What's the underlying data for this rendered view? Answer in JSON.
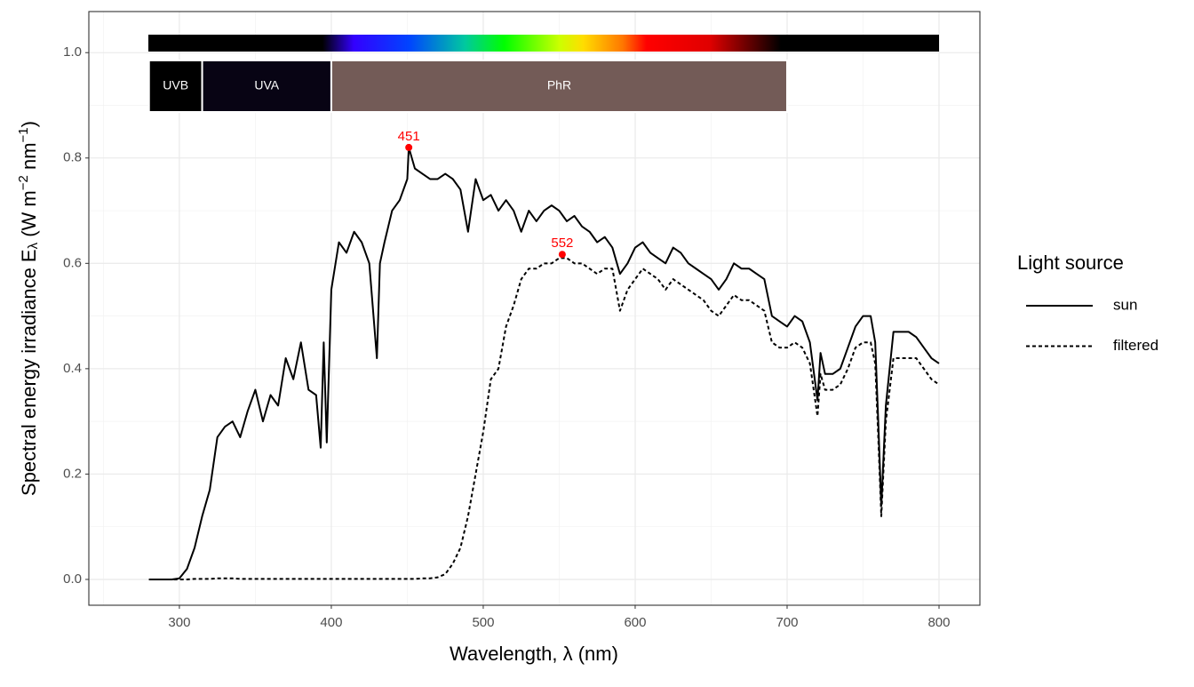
{
  "chart_data": {
    "type": "line",
    "xlabel": "Wavelength, λ (nm)",
    "ylabel_parts": [
      {
        "text": "Spectral  energy  irradiance  E"
      },
      {
        "text": "λ",
        "shift": "sub"
      },
      {
        "text": "  (W m"
      },
      {
        "text": "−2",
        "shift": "super"
      },
      {
        "text": " nm"
      },
      {
        "text": "−1",
        "shift": "super"
      },
      {
        "text": ")"
      }
    ],
    "x": [
      280,
      285,
      290,
      295,
      300,
      305,
      310,
      315,
      320,
      325,
      330,
      335,
      340,
      345,
      350,
      355,
      360,
      365,
      370,
      375,
      380,
      385,
      390,
      393,
      395,
      397,
      400,
      405,
      410,
      415,
      420,
      425,
      430,
      432,
      435,
      440,
      445,
      450,
      451,
      455,
      460,
      465,
      470,
      475,
      480,
      485,
      490,
      495,
      500,
      505,
      510,
      515,
      520,
      525,
      530,
      535,
      540,
      545,
      550,
      555,
      560,
      565,
      570,
      575,
      580,
      585,
      590,
      595,
      600,
      605,
      610,
      615,
      620,
      625,
      630,
      635,
      640,
      645,
      650,
      655,
      660,
      665,
      670,
      675,
      680,
      685,
      690,
      695,
      700,
      705,
      710,
      715,
      720,
      722,
      725,
      730,
      735,
      740,
      745,
      750,
      755,
      758,
      760,
      762,
      765,
      770,
      775,
      780,
      785,
      790,
      795,
      800
    ],
    "series": [
      {
        "name": "sun",
        "color": "#000000",
        "dash": "solid",
        "values": [
          0,
          0,
          0,
          0,
          0.002,
          0.02,
          0.06,
          0.12,
          0.17,
          0.27,
          0.29,
          0.3,
          0.27,
          0.32,
          0.36,
          0.3,
          0.35,
          0.33,
          0.42,
          0.38,
          0.45,
          0.36,
          0.35,
          0.25,
          0.45,
          0.26,
          0.55,
          0.64,
          0.62,
          0.66,
          0.64,
          0.6,
          0.42,
          0.6,
          0.64,
          0.7,
          0.72,
          0.76,
          0.82,
          0.78,
          0.77,
          0.76,
          0.76,
          0.77,
          0.76,
          0.74,
          0.66,
          0.76,
          0.72,
          0.73,
          0.7,
          0.72,
          0.7,
          0.66,
          0.7,
          0.68,
          0.7,
          0.71,
          0.7,
          0.68,
          0.69,
          0.67,
          0.66,
          0.64,
          0.65,
          0.63,
          0.58,
          0.6,
          0.63,
          0.64,
          0.62,
          0.61,
          0.6,
          0.63,
          0.62,
          0.6,
          0.59,
          0.58,
          0.57,
          0.55,
          0.57,
          0.6,
          0.59,
          0.59,
          0.58,
          0.57,
          0.5,
          0.49,
          0.48,
          0.5,
          0.49,
          0.45,
          0.34,
          0.43,
          0.39,
          0.39,
          0.4,
          0.44,
          0.48,
          0.5,
          0.5,
          0.45,
          0.3,
          0.14,
          0.33,
          0.47,
          0.47,
          0.47,
          0.46,
          0.44,
          0.42,
          0.41
        ]
      },
      {
        "name": "filtered",
        "color": "#000000",
        "dash": "dashed",
        "values": [
          0,
          0,
          0,
          0,
          0,
          0,
          0.001,
          0.001,
          0.001,
          0.002,
          0.002,
          0.002,
          0.001,
          0.001,
          0.001,
          0.001,
          0.001,
          0.001,
          0.001,
          0.001,
          0.001,
          0.001,
          0.001,
          0.001,
          0.001,
          0.001,
          0.001,
          0.001,
          0.001,
          0.001,
          0.001,
          0.001,
          0.001,
          0.001,
          0.001,
          0.001,
          0.001,
          0.001,
          0.001,
          0.001,
          0.002,
          0.002,
          0.004,
          0.01,
          0.03,
          0.06,
          0.12,
          0.2,
          0.28,
          0.38,
          0.4,
          0.48,
          0.52,
          0.57,
          0.59,
          0.59,
          0.6,
          0.6,
          0.61,
          0.61,
          0.6,
          0.6,
          0.59,
          0.58,
          0.59,
          0.59,
          0.51,
          0.55,
          0.57,
          0.59,
          0.58,
          0.57,
          0.55,
          0.57,
          0.56,
          0.55,
          0.54,
          0.53,
          0.51,
          0.5,
          0.52,
          0.54,
          0.53,
          0.53,
          0.52,
          0.51,
          0.45,
          0.44,
          0.44,
          0.45,
          0.44,
          0.41,
          0.31,
          0.39,
          0.36,
          0.36,
          0.37,
          0.4,
          0.44,
          0.45,
          0.45,
          0.41,
          0.27,
          0.12,
          0.3,
          0.42,
          0.42,
          0.42,
          0.42,
          0.4,
          0.38,
          0.37
        ]
      }
    ],
    "peaks": [
      {
        "x": 451,
        "y": 0.82,
        "color": "#ff0000"
      },
      {
        "x": 552,
        "y": 0.617,
        "color": "#ff0000"
      }
    ],
    "wavebands": [
      {
        "label": "UVB",
        "range": [
          280,
          315
        ],
        "color": "#000000"
      },
      {
        "label": "UVA",
        "range": [
          315,
          400
        ],
        "color": "#080414"
      },
      {
        "label": "PhR",
        "range": [
          400,
          700
        ],
        "color": "#735b57"
      }
    ],
    "xlim": [
      240.4,
      826.9
    ],
    "ylim": [
      -0.049,
      1.078
    ],
    "xticks": [
      300,
      400,
      500,
      600,
      700,
      800
    ],
    "yticks": [
      {
        "value": 0,
        "label": "0.0"
      },
      0.2,
      0.4,
      0.6,
      0.8,
      {
        "value": 1,
        "label": "1.0"
      }
    ],
    "xminor": [
      250,
      350,
      450,
      550,
      650,
      750
    ],
    "yminor": [
      0.1,
      0.3,
      0.5,
      0.7,
      0.9
    ],
    "grid": true,
    "legend": {
      "title": "Light source",
      "position": "right"
    }
  }
}
